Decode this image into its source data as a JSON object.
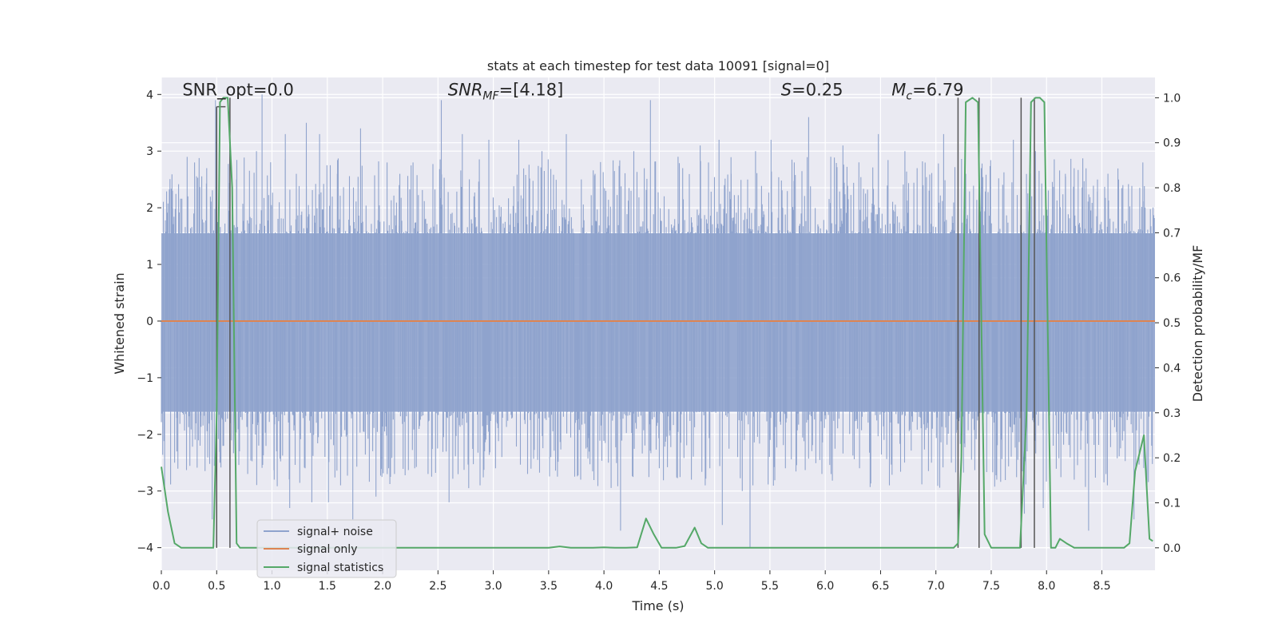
{
  "chart_data": {
    "type": "line",
    "title": "stats at each timestep for test data 10091 [signal=0]",
    "xlabel": "Time (s)",
    "ylabel": "Whitened strain",
    "y2label": "Detection probability/MF",
    "xlim": [
      0.0,
      8.98
    ],
    "ylim": [
      -4.4,
      4.3
    ],
    "y2lim": [
      -0.05,
      1.045
    ],
    "x_ticks": [
      0.0,
      0.5,
      1.0,
      1.5,
      2.0,
      2.5,
      3.0,
      3.5,
      4.0,
      4.5,
      5.0,
      5.5,
      6.0,
      6.5,
      7.0,
      7.5,
      8.0,
      8.5
    ],
    "x_tick_labels": [
      "0.0",
      "0.5",
      "1.0",
      "1.5",
      "2.0",
      "2.5",
      "3.0",
      "3.5",
      "4.0",
      "4.5",
      "5.0",
      "5.5",
      "6.0",
      "6.5",
      "7.0",
      "7.5",
      "8.0",
      "8.5"
    ],
    "y_ticks": [
      4,
      3,
      2,
      1,
      0,
      -1,
      -2,
      -3,
      -4
    ],
    "y_tick_labels": [
      "4",
      "3",
      "2",
      "1",
      "0",
      "−1",
      "−2",
      "−3",
      "−4"
    ],
    "y2_ticks": [
      1.0,
      0.9,
      0.8,
      0.7,
      0.6,
      0.5,
      0.4,
      0.3,
      0.2,
      0.1,
      0.0
    ],
    "y2_tick_labels": [
      "1.0",
      "0.9",
      "0.8",
      "0.7",
      "0.6",
      "0.5",
      "0.4",
      "0.3",
      "0.2",
      "0.1",
      "0.0"
    ],
    "grid": true,
    "legend_position": "lower-left",
    "annotations": [
      {
        "label": "SNR_opt",
        "value": "=0.0",
        "x": 0.19,
        "y": 4.08
      },
      {
        "label": "SNR_MF",
        "value": "=[4.18]",
        "x": 2.59,
        "y": 4.08
      },
      {
        "label": "S",
        "value": "=0.25",
        "x": 5.6,
        "y": 4.08
      },
      {
        "label": "M_c",
        "value": "=6.79",
        "x": 6.6,
        "y": 4.08
      }
    ],
    "series": [
      {
        "name": "signal+ noise",
        "color": "#8fa3cd",
        "style": "noise-band",
        "dense_band": [
          -1.6,
          1.55
        ],
        "peaks": [
          [
            0.1,
            2.3
          ],
          [
            0.14,
            -2.3
          ],
          [
            0.24,
            2.2
          ],
          [
            0.3,
            2.8
          ],
          [
            0.35,
            -2.2
          ],
          [
            0.41,
            2.7
          ],
          [
            0.46,
            -3.5
          ],
          [
            0.49,
            3.9
          ],
          [
            0.53,
            -2.5
          ],
          [
            0.62,
            3.4
          ],
          [
            0.68,
            2.5
          ],
          [
            0.78,
            -2.7
          ],
          [
            0.86,
            3.0
          ],
          [
            0.91,
            4.0
          ],
          [
            1.02,
            -2.8
          ],
          [
            1.12,
            3.3
          ],
          [
            1.16,
            -3.3
          ],
          [
            1.22,
            2.6
          ],
          [
            1.31,
            3.5
          ],
          [
            1.36,
            -3.2
          ],
          [
            1.43,
            3.3
          ],
          [
            1.51,
            -3.2
          ],
          [
            1.59,
            2.6
          ],
          [
            1.62,
            -2.9
          ],
          [
            1.73,
            -3.5
          ],
          [
            1.8,
            3.4
          ],
          [
            1.94,
            -3.1
          ],
          [
            2.04,
            2.8
          ],
          [
            2.15,
            2.4
          ],
          [
            2.29,
            -2.6
          ],
          [
            2.41,
            -2.7
          ],
          [
            2.53,
            3.9
          ],
          [
            2.6,
            -3.2
          ],
          [
            2.72,
            3.3
          ],
          [
            2.88,
            -2.9
          ],
          [
            2.96,
            3.2
          ],
          [
            3.02,
            -2.6
          ],
          [
            3.23,
            3.2
          ],
          [
            3.31,
            -2.7
          ],
          [
            3.44,
            3.0
          ],
          [
            3.52,
            -2.4
          ],
          [
            3.66,
            3.3
          ],
          [
            3.79,
            -2.8
          ],
          [
            3.92,
            2.6
          ],
          [
            4.04,
            -2.5
          ],
          [
            4.15,
            -3.7
          ],
          [
            4.27,
            3.0
          ],
          [
            4.42,
            3.9
          ],
          [
            4.5,
            -2.6
          ],
          [
            4.67,
            2.9
          ],
          [
            4.79,
            -2.8
          ],
          [
            4.87,
            3.1
          ],
          [
            5.04,
            3.2
          ],
          [
            5.07,
            -3.6
          ],
          [
            5.15,
            2.6
          ],
          [
            5.25,
            -3.0
          ],
          [
            5.32,
            -4.0
          ],
          [
            5.37,
            3.0
          ],
          [
            5.51,
            3.2
          ],
          [
            5.64,
            -2.6
          ],
          [
            5.72,
            2.8
          ],
          [
            5.85,
            3.6
          ],
          [
            5.97,
            -2.7
          ],
          [
            6.05,
            2.9
          ],
          [
            6.16,
            3.1
          ],
          [
            6.31,
            -2.6
          ],
          [
            6.48,
            3.3
          ],
          [
            6.58,
            -2.9
          ],
          [
            6.72,
            3.0
          ],
          [
            6.83,
            2.7
          ],
          [
            6.96,
            -2.5
          ],
          [
            7.07,
            3.3
          ],
          [
            7.14,
            -2.5
          ],
          [
            7.27,
            2.6
          ],
          [
            7.41,
            2.7
          ],
          [
            7.55,
            -2.8
          ],
          [
            7.7,
            3.2
          ],
          [
            7.8,
            -3.4
          ],
          [
            7.9,
            3.0
          ],
          [
            7.97,
            -3.3
          ],
          [
            8.06,
            -2.2
          ],
          [
            8.17,
            2.6
          ],
          [
            8.25,
            -2.8
          ],
          [
            8.38,
            -3.7
          ],
          [
            8.46,
            2.5
          ],
          [
            8.55,
            -2.9
          ],
          [
            8.69,
            2.4
          ],
          [
            8.79,
            -3.5
          ],
          [
            8.87,
            2.8
          ],
          [
            8.95,
            -2.2
          ]
        ]
      },
      {
        "name": "signal only",
        "color": "#dd8452",
        "x": [
          0.0,
          8.98
        ],
        "y": [
          0.0,
          0.0
        ]
      },
      {
        "name": "signal statistics",
        "color": "#55a868",
        "axis": "right",
        "x": [
          0.0,
          0.06,
          0.12,
          0.18,
          0.24,
          0.3,
          0.36,
          0.42,
          0.47,
          0.5,
          0.53,
          0.56,
          0.6,
          0.64,
          0.68,
          0.71,
          0.76,
          0.85,
          1.0,
          1.2,
          1.4,
          1.6,
          1.8,
          2.0,
          2.2,
          2.4,
          2.6,
          2.8,
          3.0,
          3.2,
          3.4,
          3.5,
          3.6,
          3.7,
          3.8,
          3.9,
          4.0,
          4.1,
          4.2,
          4.3,
          4.38,
          4.45,
          4.52,
          4.58,
          4.65,
          4.73,
          4.82,
          4.88,
          4.94,
          5.0,
          5.2,
          5.4,
          5.6,
          5.8,
          6.0,
          6.2,
          6.4,
          6.6,
          6.8,
          7.0,
          7.1,
          7.16,
          7.2,
          7.23,
          7.27,
          7.33,
          7.38,
          7.44,
          7.5,
          7.56,
          7.62,
          7.7,
          7.76,
          7.82,
          7.86,
          7.9,
          7.94,
          7.98,
          8.04,
          8.08,
          8.12,
          8.18,
          8.25,
          8.33,
          8.45,
          8.6,
          8.7,
          8.75,
          8.8,
          8.88,
          8.93,
          8.96
        ],
        "y": [
          0.18,
          0.08,
          0.01,
          0.0,
          0.0,
          0.0,
          0.0,
          0.0,
          0.0,
          0.3,
          0.99,
          1.0,
          1.0,
          0.8,
          0.01,
          0.0,
          0.0,
          0.0,
          0.0,
          0.0,
          0.0,
          0.0,
          0.0,
          0.0,
          0.0,
          0.0,
          0.0,
          0.0,
          0.0,
          0.0,
          0.0,
          0.0,
          0.003,
          0.0,
          0.0,
          0.0,
          0.001,
          0.0,
          0.0,
          0.001,
          0.065,
          0.03,
          0.0,
          0.0,
          0.0,
          0.004,
          0.045,
          0.01,
          0.0,
          0.0,
          0.0,
          0.0,
          0.0,
          0.0,
          0.0,
          0.0,
          0.0,
          0.0,
          0.0,
          0.0,
          0.0,
          0.0,
          0.01,
          0.2,
          0.99,
          1.0,
          0.99,
          0.03,
          0.0,
          0.0,
          0.0,
          0.0,
          0.0,
          0.3,
          0.99,
          1.0,
          1.0,
          0.99,
          0.0,
          0.0,
          0.02,
          0.01,
          0.0,
          0.0,
          0.0,
          0.0,
          0.0,
          0.01,
          0.17,
          0.25,
          0.02,
          0.015
        ]
      }
    ],
    "vertical_markers": {
      "color": "#555555",
      "lines": [
        [
          0.5,
          0.98
        ],
        [
          0.62,
          1.0
        ],
        [
          7.2,
          1.0
        ],
        [
          7.39,
          1.0
        ],
        [
          7.77,
          1.0
        ],
        [
          7.89,
          1.0
        ]
      ],
      "bracket": [
        0.5,
        0.58,
        0.98
      ]
    }
  }
}
